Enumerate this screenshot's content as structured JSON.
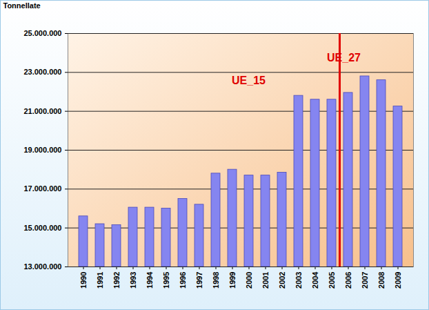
{
  "chart_data": {
    "type": "bar",
    "y_label": "Tonnellate",
    "categories": [
      "1990",
      "1991",
      "1992",
      "1993",
      "1994",
      "1995",
      "1996",
      "1997",
      "1998",
      "1999",
      "2000",
      "2001",
      "2002",
      "2003",
      "2004",
      "2005",
      "2006",
      "2007",
      "2008",
      "2009"
    ],
    "values": [
      15600000,
      15200000,
      15150000,
      16050000,
      16050000,
      16000000,
      16500000,
      16200000,
      17800000,
      18000000,
      17700000,
      17700000,
      17850000,
      21800000,
      21600000,
      21600000,
      21950000,
      22800000,
      22600000,
      21250000
    ],
    "color": "#8585f0",
    "ylim": [
      13000000,
      25000000
    ],
    "yticks": [
      {
        "value": 13000000,
        "label": "13.000.000"
      },
      {
        "value": 15000000,
        "label": "15.000.000"
      },
      {
        "value": 17000000,
        "label": "17.000.000"
      },
      {
        "value": 19000000,
        "label": "19.000.000"
      },
      {
        "value": 21000000,
        "label": "21.000.000"
      },
      {
        "value": 23000000,
        "label": "23.000.000"
      },
      {
        "value": 25000000,
        "label": "25.000.000"
      }
    ],
    "grid": true,
    "annotations": [
      {
        "text": "UE_15",
        "x": "2000",
        "color": "#e00000"
      },
      {
        "text": "UE_27",
        "x": "2006",
        "color": "#e00000"
      }
    ]
  }
}
